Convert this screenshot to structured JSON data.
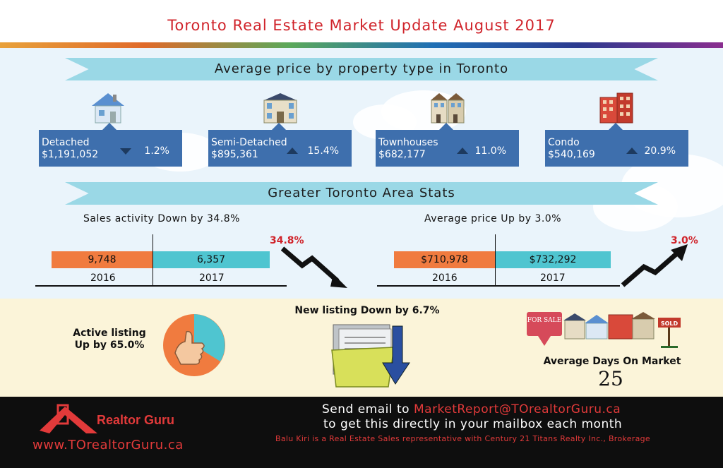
{
  "header": {
    "title": "Toronto Real Estate Market Update August 2017"
  },
  "section1": {
    "ribbon": "Average price by property type in Toronto",
    "properties": [
      {
        "name": "Detached",
        "price": "$1,191,052",
        "change": "1.2%",
        "direction": "down"
      },
      {
        "name": "Semi-Detached",
        "price": "$895,361",
        "change": "15.4%",
        "direction": "up"
      },
      {
        "name": "Townhouses",
        "price": "$682,177",
        "change": "11.0%",
        "direction": "up"
      },
      {
        "name": "Condo",
        "price": "$540,169",
        "change": "20.9%",
        "direction": "up"
      }
    ]
  },
  "section2": {
    "ribbon": "Greater Toronto Area Stats",
    "sales": {
      "title": "Sales activity Down by 34.8%",
      "v2016": "9,748",
      "v2017": "6,357",
      "y2016": "2016",
      "y2017": "2017",
      "pct": "34.8%"
    },
    "avgprice": {
      "title": "Average price  Up by 3.0%",
      "v2016": "$710,978",
      "v2017": "$732,292",
      "y2016": "2016",
      "y2017": "2017",
      "pct": "3.0%"
    }
  },
  "section3": {
    "active_line1": "Active listing",
    "active_line2": "Up by 65.0%",
    "new_listing": "New listing Down by 6.7%",
    "days_label": "Average Days On Market",
    "days_value": "25",
    "for_sale_sign": "FOR SALE",
    "sold_sign": "SOLD"
  },
  "footer": {
    "brand_name": "Realtor Guru",
    "brand_url": "www.TOrealtorGuru.ca",
    "line1_prefix": "Send email to ",
    "email": "MarketReport@TOrealtorGuru.ca",
    "line2": "to get this directly in your mailbox each month",
    "disclaimer": "Balu Kiri is a Real Estate Sales representative with Century 21 Titans Realty Inc., Brokerage"
  },
  "colors": {
    "accent_red": "#d0232a",
    "card_blue": "#3e6fad",
    "ribbon_teal": "#9ad8e6",
    "bar_orange": "#f07b3f",
    "bar_teal": "#4fc5d0"
  }
}
